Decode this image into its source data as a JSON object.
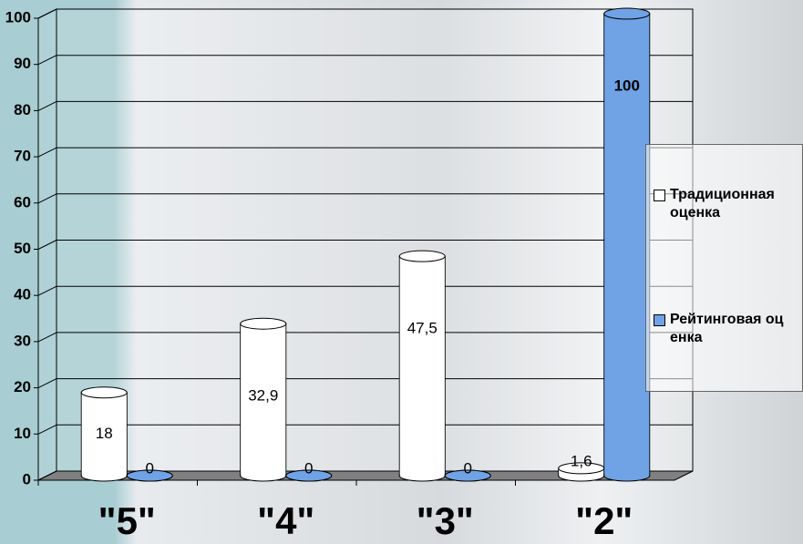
{
  "chart_data": {
    "type": "bar3d",
    "categories": [
      "\"5\"",
      "\"4\"",
      "\"3\"",
      "\"2\""
    ],
    "series": [
      {
        "name": "Традиционная оценка",
        "color": "#ffffff",
        "values": [
          18,
          32.9,
          47.5,
          1.6
        ],
        "value_labels": [
          "18",
          "32,9",
          "47,5",
          "1,6"
        ]
      },
      {
        "name": "Рейтинговая оценка",
        "color": "#6fa3e6",
        "values": [
          0,
          0,
          0,
          100
        ]
      }
    ],
    "ylim": [
      0,
      100
    ],
    "yticks": [
      0,
      10,
      20,
      30,
      40,
      50,
      60,
      70,
      80,
      90,
      100
    ],
    "grid": true,
    "legend": "right"
  }
}
